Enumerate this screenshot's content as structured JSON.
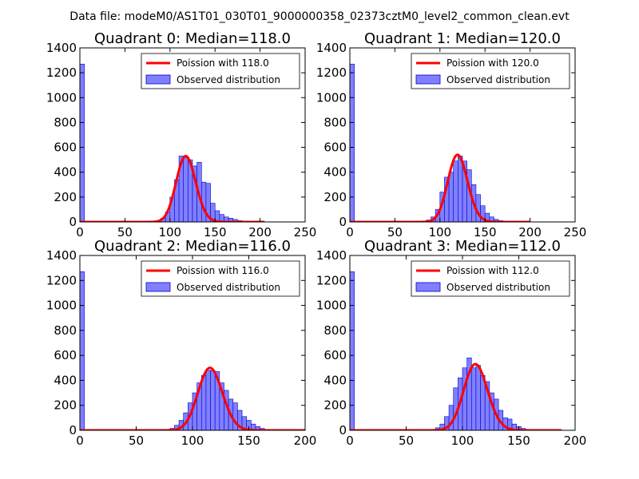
{
  "figure": {
    "suptitle": "Data file: modeM0/AS1T01_030T01_9000000358_02373cztM0_level2_common_clean.evt"
  },
  "colors": {
    "fit_line": "#ff0000",
    "bar_fill": "#8080ff",
    "bar_edge": "#0000cc"
  },
  "chart_data": [
    {
      "type": "bar",
      "title": "Quadrant 0: Median=118.0",
      "xlim": [
        0,
        250
      ],
      "ylim": [
        0,
        1400
      ],
      "xticks": [
        0,
        50,
        100,
        150,
        200,
        250
      ],
      "yticks": [
        0,
        200,
        400,
        600,
        800,
        1000,
        1200,
        1400
      ],
      "legend": {
        "placement": "top-right",
        "line_label": "Poission with 118.0",
        "bar_label": "Observed distribution"
      },
      "grid": false,
      "bins": [
        [
          0,
          1270
        ],
        [
          85,
          10
        ],
        [
          90,
          30
        ],
        [
          95,
          80
        ],
        [
          100,
          200
        ],
        [
          105,
          340
        ],
        [
          110,
          530
        ],
        [
          115,
          520
        ],
        [
          120,
          500
        ],
        [
          125,
          450
        ],
        [
          130,
          480
        ],
        [
          135,
          320
        ],
        [
          140,
          310
        ],
        [
          145,
          150
        ],
        [
          150,
          90
        ],
        [
          155,
          60
        ],
        [
          160,
          40
        ],
        [
          165,
          30
        ],
        [
          170,
          20
        ],
        [
          175,
          10
        ],
        [
          180,
          5
        ]
      ],
      "bin_width": 5,
      "poisson_mean": 118.0,
      "poisson_peak": 530,
      "line_x_range": [
        0,
        205
      ]
    },
    {
      "type": "bar",
      "title": "Quadrant 1: Median=120.0",
      "xlim": [
        0,
        250
      ],
      "ylim": [
        0,
        1400
      ],
      "xticks": [
        0,
        50,
        100,
        150,
        200,
        250
      ],
      "yticks": [
        0,
        200,
        400,
        600,
        800,
        1000,
        1200,
        1400
      ],
      "legend": {
        "placement": "top-right",
        "line_label": "Poission with 120.0",
        "bar_label": "Observed distribution"
      },
      "grid": false,
      "bins": [
        [
          0,
          1270
        ],
        [
          85,
          15
        ],
        [
          90,
          40
        ],
        [
          95,
          100
        ],
        [
          100,
          240
        ],
        [
          105,
          360
        ],
        [
          110,
          400
        ],
        [
          115,
          490
        ],
        [
          120,
          530
        ],
        [
          125,
          490
        ],
        [
          130,
          420
        ],
        [
          135,
          300
        ],
        [
          140,
          220
        ],
        [
          145,
          130
        ],
        [
          150,
          70
        ],
        [
          155,
          40
        ],
        [
          160,
          20
        ],
        [
          165,
          10
        ],
        [
          170,
          5
        ]
      ],
      "bin_width": 5,
      "poisson_mean": 120.0,
      "poisson_peak": 540,
      "line_x_range": [
        0,
        200
      ]
    },
    {
      "type": "bar",
      "title": "Quadrant 2: Median=116.0",
      "xlim": [
        0,
        200
      ],
      "ylim": [
        0,
        1400
      ],
      "xticks": [
        0,
        50,
        100,
        150,
        200
      ],
      "yticks": [
        0,
        200,
        400,
        600,
        800,
        1000,
        1200,
        1400
      ],
      "legend": {
        "placement": "top-right",
        "line_label": "Poission with 116.0",
        "bar_label": "Observed distribution"
      },
      "grid": false,
      "bins": [
        [
          0,
          1270
        ],
        [
          80,
          15
        ],
        [
          84,
          40
        ],
        [
          88,
          80
        ],
        [
          92,
          140
        ],
        [
          96,
          220
        ],
        [
          100,
          300
        ],
        [
          104,
          380
        ],
        [
          108,
          440
        ],
        [
          112,
          480
        ],
        [
          116,
          480
        ],
        [
          120,
          470
        ],
        [
          124,
          380
        ],
        [
          128,
          320
        ],
        [
          132,
          250
        ],
        [
          136,
          220
        ],
        [
          140,
          160
        ],
        [
          144,
          110
        ],
        [
          148,
          80
        ],
        [
          152,
          50
        ],
        [
          156,
          30
        ],
        [
          160,
          15
        ],
        [
          164,
          5
        ]
      ],
      "bin_width": 4,
      "poisson_mean": 116.0,
      "poisson_peak": 500,
      "line_x_range": [
        0,
        200
      ]
    },
    {
      "type": "bar",
      "title": "Quadrant 3: Median=112.0",
      "xlim": [
        0,
        200
      ],
      "ylim": [
        0,
        1400
      ],
      "xticks": [
        0,
        50,
        100,
        150,
        200
      ],
      "yticks": [
        0,
        200,
        400,
        600,
        800,
        1000,
        1200,
        1400
      ],
      "legend": {
        "placement": "top-right",
        "line_label": "Poission with 112.0",
        "bar_label": "Observed distribution"
      },
      "grid": false,
      "bins": [
        [
          0,
          1270
        ],
        [
          76,
          20
        ],
        [
          80,
          50
        ],
        [
          84,
          110
        ],
        [
          88,
          200
        ],
        [
          92,
          340
        ],
        [
          96,
          420
        ],
        [
          100,
          500
        ],
        [
          104,
          580
        ],
        [
          108,
          500
        ],
        [
          112,
          520
        ],
        [
          116,
          440
        ],
        [
          120,
          390
        ],
        [
          124,
          300
        ],
        [
          128,
          250
        ],
        [
          132,
          160
        ],
        [
          136,
          100
        ],
        [
          140,
          90
        ],
        [
          144,
          50
        ],
        [
          148,
          30
        ],
        [
          152,
          15
        ],
        [
          156,
          5
        ]
      ],
      "bin_width": 4,
      "poisson_mean": 112.0,
      "poisson_peak": 530,
      "line_x_range": [
        0,
        188
      ]
    }
  ]
}
